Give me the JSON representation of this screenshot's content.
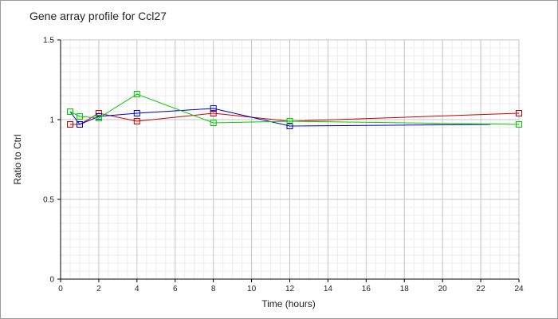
{
  "chart_data": {
    "type": "line",
    "title": "Gene array profile for Ccl27",
    "xlabel": "Time (hours)",
    "ylabel": "Ratio to Ctrl",
    "xlim": [
      0,
      24
    ],
    "ylim": [
      0,
      1.5
    ],
    "x_ticks": [
      "0",
      "2",
      "4",
      "6",
      "8",
      "10",
      "12",
      "14",
      "16",
      "18",
      "20",
      "22",
      "24"
    ],
    "y_ticks": [
      "0",
      "0.5",
      "1",
      "1.5"
    ],
    "grid": true,
    "series": [
      {
        "color": "#cc0000",
        "markers": true,
        "marker_x": [
          0.5,
          1,
          2,
          4,
          8,
          12,
          24
        ],
        "marker_y": [
          0.97,
          0.97,
          1.04,
          0.99,
          1.04,
          0.99,
          1.04
        ],
        "line_x": [
          0.5,
          1,
          2,
          4,
          8,
          12,
          24
        ],
        "line_y": [
          0.97,
          0.97,
          1.04,
          0.99,
          1.04,
          0.99,
          1.04
        ]
      },
      {
        "color": "#0000cc",
        "markers": true,
        "marker_x": [
          1,
          2,
          4,
          8,
          12
        ],
        "marker_y": [
          0.97,
          1.02,
          1.04,
          1.07,
          0.96
        ],
        "line_x": [
          0.5,
          1,
          2,
          4,
          8,
          12,
          22.5
        ],
        "line_y": [
          1.05,
          0.97,
          1.02,
          1.04,
          1.07,
          0.96,
          0.97
        ]
      },
      {
        "color": "#00cc00",
        "markers": true,
        "marker_x": [
          0.5,
          1,
          2,
          4,
          8,
          12,
          24
        ],
        "marker_y": [
          1.05,
          1.02,
          1.01,
          1.16,
          0.98,
          0.99,
          0.97
        ],
        "line_x": [
          0.5,
          1,
          2,
          4,
          8,
          12,
          24
        ],
        "line_y": [
          1.05,
          1.02,
          1.01,
          1.16,
          0.98,
          0.99,
          0.97
        ]
      }
    ]
  }
}
